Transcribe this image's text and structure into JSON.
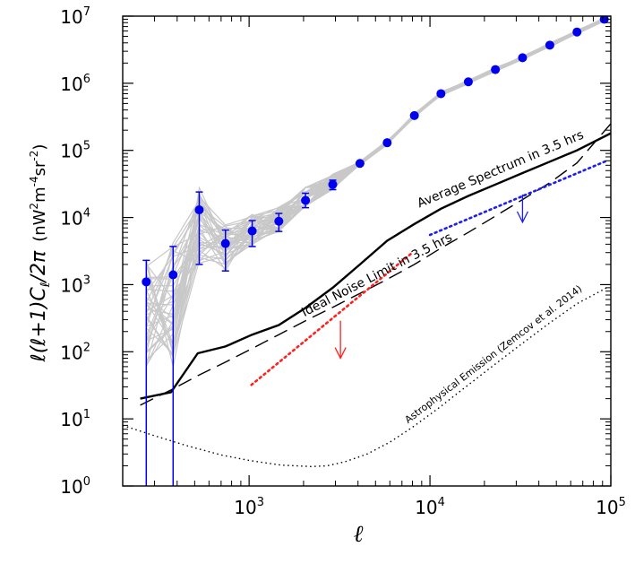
{
  "chart_data": {
    "type": "line",
    "scale": {
      "x": "log",
      "y": "log"
    },
    "xlim": [
      200,
      100000
    ],
    "ylim": [
      1,
      10000000
    ],
    "grid": false,
    "xlabel": "ℓ",
    "ylabel": {
      "prefix": "ℓ(ℓ+1)C",
      "subscript": "ℓ",
      "frac": "/2π",
      "units_open": "(nW",
      "units_sup1": "2",
      "units_mid": "m",
      "units_sup2": "-4",
      "units_mid2": "sr",
      "units_sup3": "-2",
      "units_close": ")"
    },
    "x_ticks": [
      {
        "value": 1000,
        "base": "10",
        "exp": "3"
      },
      {
        "value": 10000,
        "base": "10",
        "exp": "4"
      },
      {
        "value": 100000,
        "base": "10",
        "exp": "5"
      }
    ],
    "y_ticks": [
      {
        "value": 1,
        "base": "10",
        "exp": "0"
      },
      {
        "value": 10,
        "base": "10",
        "exp": "1"
      },
      {
        "value": 100,
        "base": "10",
        "exp": "2"
      },
      {
        "value": 1000,
        "base": "10",
        "exp": "3"
      },
      {
        "value": 10000,
        "base": "10",
        "exp": "4"
      },
      {
        "value": 100000,
        "base": "10",
        "exp": "5"
      },
      {
        "value": 1000000,
        "base": "10",
        "exp": "6"
      },
      {
        "value": 10000000,
        "base": "10",
        "exp": "7"
      }
    ],
    "colors": {
      "measured": "#0000ee",
      "realizations": "#c8c8c8",
      "average": "#000000",
      "noise": "#000000",
      "astro": "#000000",
      "red_limit": "#ff2020",
      "blue_limit": "#1e1ef0"
    },
    "series": [
      {
        "kind": "points_errorbars",
        "x": [
          270,
          380,
          530,
          740,
          1040,
          1460,
          2050,
          2900,
          4100,
          5800,
          8200,
          11500,
          16300,
          23000,
          32500,
          46000,
          65000,
          92000
        ],
        "y": [
          1100,
          1400,
          13000,
          4100,
          6300,
          8800,
          18000,
          31000,
          64000,
          130000,
          330000,
          700000,
          1050000,
          1600000,
          2400000,
          3700000,
          5800000,
          9000000
        ],
        "yerr_low": [
          1,
          1,
          2000,
          1600,
          3700,
          6200,
          14000,
          26000,
          null,
          null,
          null,
          null,
          null,
          null,
          null,
          null,
          null,
          null
        ],
        "yerr_high": [
          2300,
          3700,
          24000,
          6500,
          9000,
          11500,
          23000,
          36000,
          null,
          null,
          null,
          null,
          null,
          null,
          null,
          null,
          null,
          null
        ]
      },
      {
        "label": "Average Spectrum in 3.5 hrs",
        "kind": "solid",
        "x": [
          250,
          370,
          520,
          740,
          1040,
          1460,
          2050,
          2900,
          4100,
          5800,
          8200,
          11500,
          16300,
          23000,
          32500,
          46000,
          65000,
          100000
        ],
        "y": [
          20,
          25,
          95,
          120,
          180,
          250,
          450,
          900,
          2000,
          4500,
          8000,
          13500,
          21000,
          31000,
          46000,
          68000,
          100000,
          180000
        ]
      },
      {
        "label": "Ideal Noise Limit in 3.5 hrs",
        "kind": "dashed",
        "x": [
          250,
          370,
          520,
          740,
          1040,
          1460,
          2050,
          2900,
          4100,
          5800,
          8200,
          11500,
          16300,
          23000,
          32500,
          46000,
          65000,
          100000
        ],
        "y": [
          16,
          27,
          44,
          70,
          112,
          180,
          290,
          460,
          740,
          1200,
          2000,
          3500,
          6000,
          10500,
          18500,
          33000,
          65000,
          250000
        ]
      },
      {
        "label": "Astrophysical Emission (Zemcov et al. 2014)",
        "kind": "dotted",
        "x": [
          200,
          300,
          450,
          700,
          1000,
          1500,
          2200,
          2700,
          3400,
          4500,
          6000,
          8000,
          11000,
          15000,
          22000,
          32000,
          46000,
          65000,
          95000
        ],
        "y": [
          8,
          5.6,
          4,
          2.9,
          2.4,
          2.05,
          1.95,
          2,
          2.3,
          3,
          4.5,
          7.5,
          14,
          27,
          60,
          130,
          270,
          520,
          900
        ]
      },
      {
        "kind": "dotted_limit",
        "x": [
          1030,
          8000
        ],
        "y": [
          32,
          3000
        ]
      },
      {
        "kind": "dotted_limit",
        "x": [
          10000,
          95000
        ],
        "y": [
          5500,
          70000
        ]
      }
    ],
    "limit_arrows": [
      {
        "x": 3200,
        "y_top": 290,
        "y_bottom": 80
      },
      {
        "x": 32500,
        "y_top": 22000,
        "y_bottom": 8500
      }
    ]
  }
}
